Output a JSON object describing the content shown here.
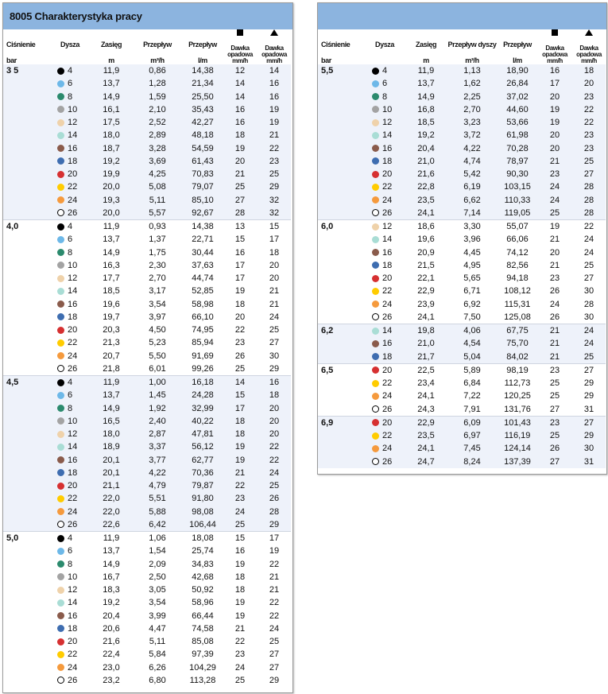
{
  "left": {
    "title": "8005 Charakterystyka pracy",
    "headers": {
      "pressure": "Ciśnienie",
      "nozzle": "Dysza",
      "range": "Zasięg",
      "flow_m3h": "Przepływ",
      "flow_lm": "Przepływ",
      "dose_sq": "Dawka opadowa",
      "dose_tri": "Dawka opadowa"
    },
    "units": {
      "pressure": "bar",
      "range": "m",
      "flow_m3h": "m³/h",
      "flow_lm": "l/m",
      "dose_sq": "mm/h",
      "dose_tri": "mm/h"
    },
    "groups": [
      {
        "pressure": "3 5",
        "rows": [
          [
            "4",
            "11,9",
            "0,86",
            "14,38",
            "12",
            "14"
          ],
          [
            "6",
            "13,7",
            "1,28",
            "21,34",
            "14",
            "16"
          ],
          [
            "8",
            "14,9",
            "1,59",
            "25,50",
            "14",
            "16"
          ],
          [
            "10",
            "16,1",
            "2,10",
            "35,43",
            "16",
            "19"
          ],
          [
            "12",
            "17,5",
            "2,52",
            "42,27",
            "16",
            "19"
          ],
          [
            "14",
            "18,0",
            "2,89",
            "48,18",
            "18",
            "21"
          ],
          [
            "16",
            "18,7",
            "3,28",
            "54,59",
            "19",
            "22"
          ],
          [
            "18",
            "19,2",
            "3,69",
            "61,43",
            "20",
            "23"
          ],
          [
            "20",
            "19,9",
            "4,25",
            "70,83",
            "21",
            "25"
          ],
          [
            "22",
            "20,0",
            "5,08",
            "79,07",
            "25",
            "29"
          ],
          [
            "24",
            "19,3",
            "5,11",
            "85,10",
            "27",
            "32"
          ],
          [
            "26",
            "20,0",
            "5,57",
            "92,67",
            "28",
            "32"
          ]
        ]
      },
      {
        "pressure": "4,0",
        "rows": [
          [
            "4",
            "11,9",
            "0,93",
            "14,38",
            "13",
            "15"
          ],
          [
            "6",
            "13,7",
            "1,37",
            "22,71",
            "15",
            "17"
          ],
          [
            "8",
            "14,9",
            "1,75",
            "30,44",
            "16",
            "18"
          ],
          [
            "10",
            "16,3",
            "2,30",
            "37,63",
            "17",
            "20"
          ],
          [
            "12",
            "17,7",
            "2,70",
            "44,74",
            "17",
            "20"
          ],
          [
            "14",
            "18,5",
            "3,17",
            "52,85",
            "19",
            "21"
          ],
          [
            "16",
            "19,6",
            "3,54",
            "58,98",
            "18",
            "21"
          ],
          [
            "18",
            "19,7",
            "3,97",
            "66,10",
            "20",
            "24"
          ],
          [
            "20",
            "20,3",
            "4,50",
            "74,95",
            "22",
            "25"
          ],
          [
            "22",
            "21,3",
            "5,23",
            "85,94",
            "23",
            "27"
          ],
          [
            "24",
            "20,7",
            "5,50",
            "91,69",
            "26",
            "30"
          ],
          [
            "26",
            "21,8",
            "6,01",
            "99,26",
            "25",
            "29"
          ]
        ]
      },
      {
        "pressure": "4,5",
        "rows": [
          [
            "4",
            "11,9",
            "1,00",
            "16,18",
            "14",
            "16"
          ],
          [
            "6",
            "13,7",
            "1,45",
            "24,28",
            "15",
            "18"
          ],
          [
            "8",
            "14,9",
            "1,92",
            "32,99",
            "17",
            "20"
          ],
          [
            "10",
            "16,5",
            "2,40",
            "40,22",
            "18",
            "20"
          ],
          [
            "12",
            "18,0",
            "2,87",
            "47,81",
            "18",
            "20"
          ],
          [
            "14",
            "18,9",
            "3,37",
            "56,12",
            "19",
            "22"
          ],
          [
            "16",
            "20,1",
            "3,77",
            "62,77",
            "19",
            "22"
          ],
          [
            "18",
            "20,1",
            "4,22",
            "70,36",
            "21",
            "24"
          ],
          [
            "20",
            "21,1",
            "4,79",
            "79,87",
            "22",
            "25"
          ],
          [
            "22",
            "22,0",
            "5,51",
            "91,80",
            "23",
            "26"
          ],
          [
            "24",
            "22,0",
            "5,88",
            "98,08",
            "24",
            "28"
          ],
          [
            "26",
            "22,6",
            "6,42",
            "106,44",
            "25",
            "29"
          ]
        ]
      },
      {
        "pressure": "5,0",
        "rows": [
          [
            "4",
            "11,9",
            "1,06",
            "18,08",
            "15",
            "17"
          ],
          [
            "6",
            "13,7",
            "1,54",
            "25,74",
            "16",
            "19"
          ],
          [
            "8",
            "14,9",
            "2,09",
            "34,83",
            "19",
            "22"
          ],
          [
            "10",
            "16,7",
            "2,50",
            "42,68",
            "18",
            "21"
          ],
          [
            "12",
            "18,3",
            "3,05",
            "50,92",
            "18",
            "21"
          ],
          [
            "14",
            "19,2",
            "3,54",
            "58,96",
            "19",
            "22"
          ],
          [
            "16",
            "20,4",
            "3,99",
            "66,44",
            "19",
            "22"
          ],
          [
            "18",
            "20,6",
            "4,47",
            "74,58",
            "21",
            "24"
          ],
          [
            "20",
            "21,6",
            "5,11",
            "85,08",
            "22",
            "25"
          ],
          [
            "22",
            "22,4",
            "5,84",
            "97,39",
            "23",
            "27"
          ],
          [
            "24",
            "23,0",
            "6,26",
            "104,29",
            "24",
            "27"
          ],
          [
            "26",
            "23,2",
            "6,80",
            "113,28",
            "25",
            "29"
          ]
        ]
      }
    ]
  },
  "right": {
    "title": "",
    "headers": {
      "pressure": "Ciśnienie",
      "nozzle": "Dysza",
      "range": "Zasięg",
      "flow_m3h": "Przepływ dyszy",
      "flow_lm": "Przepływ",
      "dose_sq": "Dawka opadowa",
      "dose_tri": "Dawka opadowa"
    },
    "units": {
      "pressure": "bar",
      "range": "m",
      "flow_m3h": "m³/h",
      "flow_lm": "l/m",
      "dose_sq": "mm/h",
      "dose_tri": "mm/h"
    },
    "groups": [
      {
        "pressure": "5,5",
        "rows": [
          [
            "4",
            "11,9",
            "1,13",
            "18,90",
            "16",
            "18"
          ],
          [
            "6",
            "13,7",
            "1,62",
            "26,84",
            "17",
            "20"
          ],
          [
            "8",
            "14,9",
            "2,25",
            "37,02",
            "20",
            "23"
          ],
          [
            "10",
            "16,8",
            "2,70",
            "44,60",
            "19",
            "22"
          ],
          [
            "12",
            "18,5",
            "3,23",
            "53,66",
            "19",
            "22"
          ],
          [
            "14",
            "19,2",
            "3,72",
            "61,98",
            "20",
            "23"
          ],
          [
            "16",
            "20,4",
            "4,22",
            "70,28",
            "20",
            "23"
          ],
          [
            "18",
            "21,0",
            "4,74",
            "78,97",
            "21",
            "25"
          ],
          [
            "20",
            "21,6",
            "5,42",
            "90,30",
            "23",
            "27"
          ],
          [
            "22",
            "22,8",
            "6,19",
            "103,15",
            "24",
            "28"
          ],
          [
            "24",
            "23,5",
            "6,62",
            "110,33",
            "24",
            "28"
          ],
          [
            "26",
            "24,1",
            "7,14",
            "119,05",
            "25",
            "28"
          ]
        ]
      },
      {
        "pressure": "6,0",
        "rows": [
          [
            "12",
            "18,6",
            "3,30",
            "55,07",
            "19",
            "22"
          ],
          [
            "14",
            "19,6",
            "3,96",
            "66,06",
            "21",
            "24"
          ],
          [
            "16",
            "20,9",
            "4,45",
            "74,12",
            "20",
            "24"
          ],
          [
            "18",
            "21,5",
            "4,95",
            "82,56",
            "21",
            "25"
          ],
          [
            "20",
            "22,1",
            "5,65",
            "94,18",
            "23",
            "27"
          ],
          [
            "22",
            "22,9",
            "6,71",
            "108,12",
            "26",
            "30"
          ],
          [
            "24",
            "23,9",
            "6,92",
            "115,31",
            "24",
            "28"
          ],
          [
            "26",
            "24,1",
            "7,50",
            "125,08",
            "26",
            "30"
          ]
        ]
      },
      {
        "pressure": "6,2",
        "rows": [
          [
            "14",
            "19,8",
            "4,06",
            "67,75",
            "21",
            "24"
          ],
          [
            "16",
            "21,0",
            "4,54",
            "75,70",
            "21",
            "24"
          ],
          [
            "18",
            "21,7",
            "5,04",
            "84,02",
            "21",
            "25"
          ]
        ]
      },
      {
        "pressure": "6,5",
        "rows": [
          [
            "20",
            "22,5",
            "5,89",
            "98,19",
            "23",
            "27"
          ],
          [
            "22",
            "23,4",
            "6,84",
            "112,73",
            "25",
            "29"
          ],
          [
            "24",
            "24,1",
            "7,22",
            "120,25",
            "25",
            "29"
          ],
          [
            "26",
            "24,3",
            "7,91",
            "131,76",
            "27",
            "31"
          ]
        ]
      },
      {
        "pressure": "6,9",
        "rows": [
          [
            "20",
            "22,9",
            "6,09",
            "101,43",
            "23",
            "27"
          ],
          [
            "22",
            "23,5",
            "6,97",
            "116,19",
            "25",
            "29"
          ],
          [
            "24",
            "24,1",
            "7,45",
            "124,14",
            "26",
            "30"
          ],
          [
            "26",
            "24,7",
            "8,24",
            "137,39",
            "27",
            "31"
          ]
        ]
      }
    ]
  },
  "nozzle_colors": {
    "4": "#000000",
    "6": "#6db8e8",
    "8": "#2b8a6d",
    "10": "#a3a3a3",
    "12": "#efd2aa",
    "14": "#a9ddd5",
    "16": "#8a5b4b",
    "18": "#3e6db0",
    "20": "#d63031",
    "22": "#ffcc00",
    "24": "#f59a3d",
    "26": "#ffffff"
  },
  "icons": {
    "dose_sq": "square-icon",
    "dose_tri": "triangle-icon"
  },
  "colors": {
    "title_bar": "#8cb4df",
    "alt_row": "#eef2fa"
  }
}
